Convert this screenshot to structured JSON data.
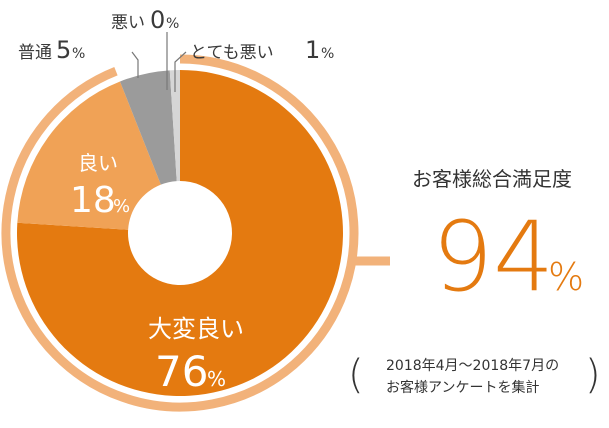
{
  "chart_data": {
    "type": "pie",
    "categories": [
      "大変良い",
      "良い",
      "普通",
      "悪い",
      "とても悪い"
    ],
    "values": [
      76,
      18,
      5,
      0,
      1
    ],
    "value_labels": [
      "76",
      "18",
      "5",
      "0",
      "1"
    ],
    "unit": "%",
    "colors": [
      "#e47a10",
      "#f0a256",
      "#9b9b9b",
      "#bdbdbd",
      "#d6d6d6"
    ],
    "highlight_ring_color": "#f2b27a",
    "donut": true
  },
  "summary": {
    "title": "お客様総合満足度",
    "value": "94",
    "unit": "%"
  },
  "note": {
    "line1": "2018年4月～2018年7月の",
    "line2": "お客様アンケートを集計"
  }
}
